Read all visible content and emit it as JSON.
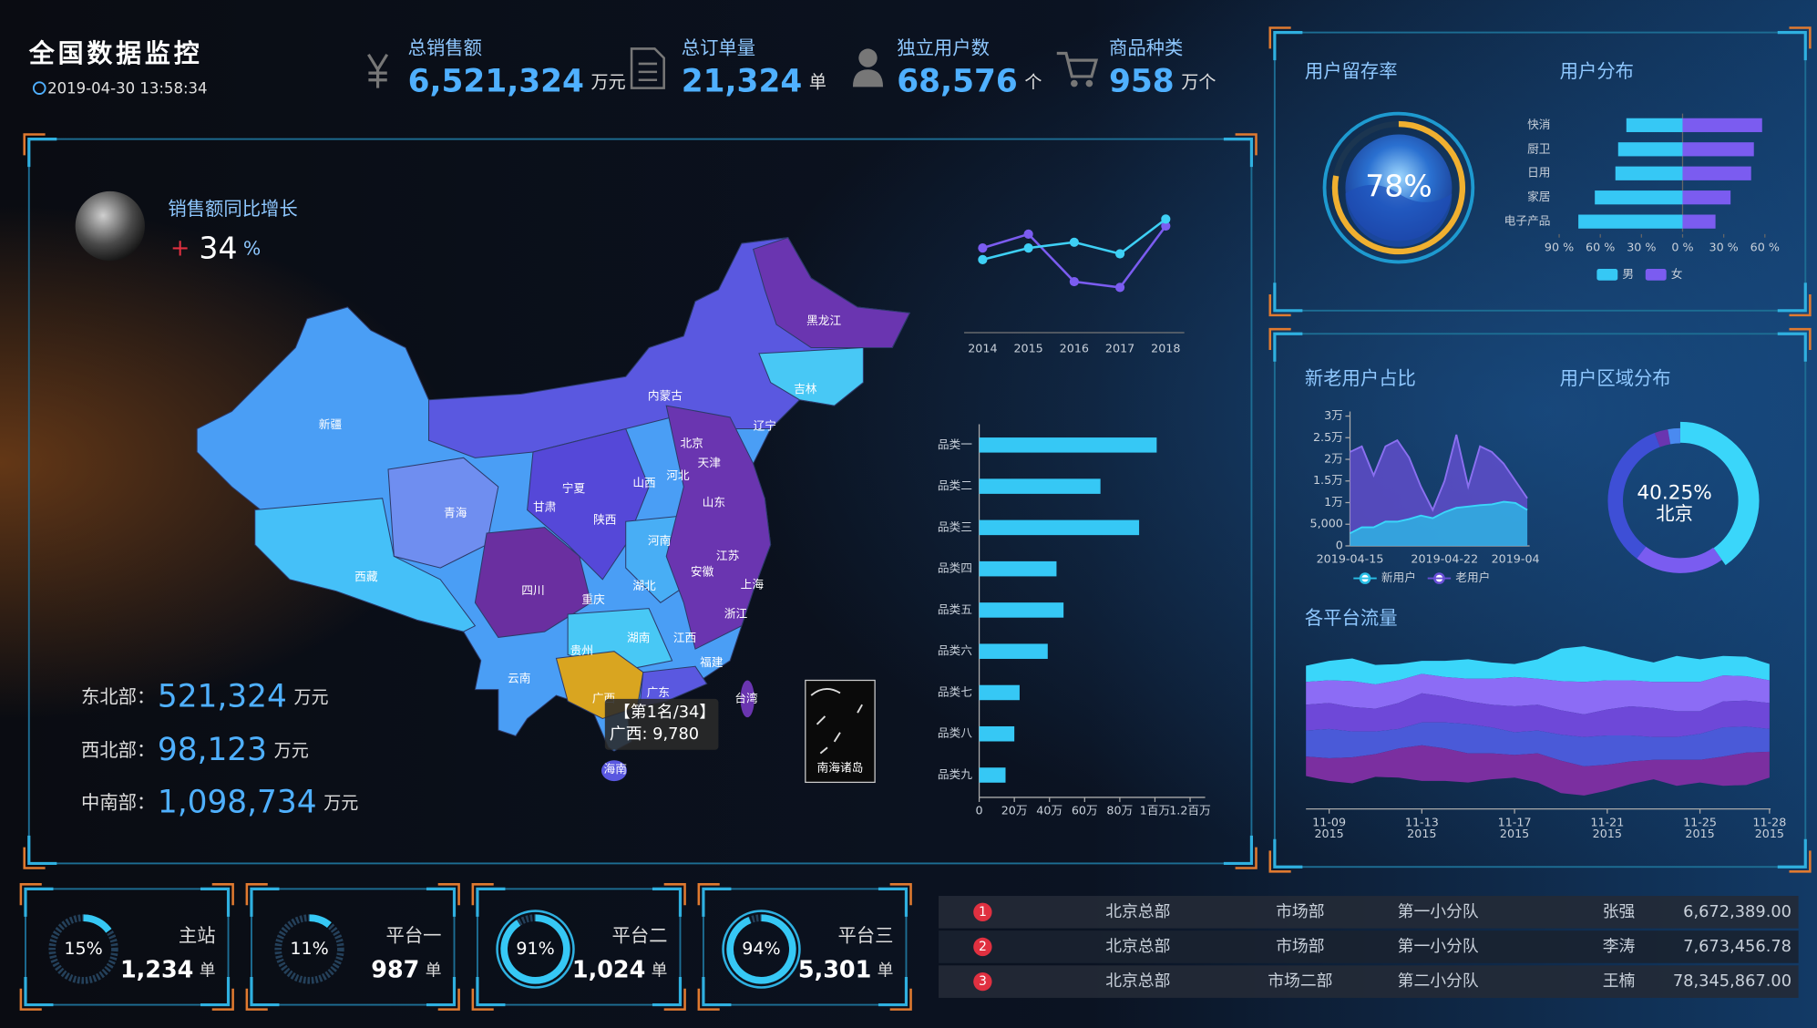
{
  "header": {
    "title": "全国数据监控",
    "time": "2019-04-30 13:58:34"
  },
  "kpis": [
    {
      "label": "总销售额",
      "value": "6,521,324",
      "unit": "万元"
    },
    {
      "label": "总订单量",
      "value": "21,324",
      "unit": "单"
    },
    {
      "label": "独立用户数",
      "value": "68,576",
      "unit": "个"
    },
    {
      "label": "商品种类",
      "value": "958",
      "unit": "万个"
    }
  ],
  "growth": {
    "label": "销售额同比增长",
    "sign": "+",
    "value": "34",
    "unit": "%"
  },
  "regions": [
    {
      "label": "东北部：",
      "value": "521,324",
      "unit": "万元"
    },
    {
      "label": "西北部：",
      "value": "98,123",
      "unit": "万元"
    },
    {
      "label": "中南部：",
      "value": "1,098,734",
      "unit": "万元"
    }
  ],
  "map": {
    "provinces": [
      "新疆",
      "西藏",
      "青海",
      "甘肃",
      "宁夏",
      "内蒙古",
      "黑龙江",
      "吉林",
      "辽宁",
      "北京",
      "天津",
      "河北",
      "山西",
      "陕西",
      "四川",
      "重庆",
      "云南",
      "贵州",
      "广西",
      "湖南",
      "湖北",
      "河南",
      "山东",
      "江苏",
      "安徽",
      "上海",
      "浙江",
      "江西",
      "福建",
      "广东",
      "台湾",
      "海南"
    ],
    "tooltip": {
      "rank": "【第1名/34】",
      "text": "广西: 9,780"
    },
    "inset": "南海诸岛"
  },
  "platforms": [
    {
      "name": "主站",
      "percent": 15,
      "percent_label": "15%",
      "count": "1,234",
      "unit": "单"
    },
    {
      "name": "平台一",
      "percent": 11,
      "percent_label": "11%",
      "count": "987",
      "unit": "单"
    },
    {
      "name": "平台二",
      "percent": 91,
      "percent_label": "91%",
      "count": "1,024",
      "unit": "单"
    },
    {
      "name": "平台三",
      "percent": 94,
      "percent_label": "94%",
      "count": "5,301",
      "unit": "单"
    }
  ],
  "table": {
    "rows": [
      [
        "1",
        "北京总部",
        "市场部",
        "第一小分队",
        "张强",
        "6,672,389.00"
      ],
      [
        "2",
        "北京总部",
        "市场部",
        "第一小分队",
        "李涛",
        "7,673,456.78"
      ],
      [
        "3",
        "北京总部",
        "市场二部",
        "第二小分队",
        "王楠",
        "78,345,867.00"
      ]
    ]
  },
  "chart_data": [
    {
      "type": "line",
      "categories": [
        "2014",
        "2015",
        "2016",
        "2017",
        "2018"
      ],
      "series": [
        {
          "color": "#7b5cf0",
          "values": [
            46,
            58,
            17,
            12,
            65
          ]
        },
        {
          "color": "#3ed0f5",
          "values": [
            36,
            46,
            51,
            41,
            71
          ]
        }
      ],
      "ylim": [
        0,
        80
      ]
    },
    {
      "type": "hbar",
      "categories": [
        "品类一",
        "品类二",
        "品类三",
        "品类四",
        "品类五",
        "品类六",
        "品类七",
        "品类八",
        "品类九"
      ],
      "values": [
        1010000,
        690000,
        910000,
        440000,
        480000,
        390000,
        230000,
        200000,
        150000
      ],
      "color": "#36c8f5",
      "xlim": [
        0,
        1200000
      ],
      "xticks": [
        0,
        {
          "value": 200000,
          "label": "20万"
        },
        {
          "value": 400000,
          "label": "40万"
        },
        {
          "value": 600000,
          "label": "60万"
        },
        {
          "value": 800000,
          "label": "80万"
        },
        {
          "value": 1000000,
          "label": "1百万"
        },
        {
          "value": 1200000,
          "label": "1.2百万"
        }
      ]
    },
    {
      "type": "gauge",
      "title": "用户留存率",
      "value": 78,
      "value_label": "78%",
      "color": "#f0b030"
    },
    {
      "type": "butterfly",
      "title": "用户分布",
      "categories": [
        "快消",
        "厨卫",
        "日用",
        "家居",
        "电子产品"
      ],
      "series": [
        {
          "name": "男",
          "color": "#36c8f5",
          "values": [
            -41,
            -47,
            -49,
            -64,
            -76
          ]
        },
        {
          "name": "女",
          "color": "#7b5cf0",
          "values": [
            58,
            52,
            50,
            35,
            24
          ]
        }
      ],
      "xlim": [
        -90,
        60
      ],
      "xticks": [
        {
          "value": -90,
          "label": "90 %"
        },
        {
          "value": -60,
          "label": "60 %"
        },
        {
          "value": -30,
          "label": "30 %"
        },
        {
          "value": 0,
          "label": "0 %"
        },
        {
          "value": 30,
          "label": "30 %"
        },
        {
          "value": 60,
          "label": "60 %"
        }
      ]
    },
    {
      "type": "area",
      "title": "新老用户占比",
      "categories": [
        "2019-04-15",
        null,
        null,
        null,
        null,
        null,
        null,
        null,
        "2019-04-22",
        null,
        null,
        null,
        null,
        null,
        "2019-04",
        null
      ],
      "series": [
        {
          "name": "新用户",
          "color": "#2ac0e8",
          "values": [
            2900,
            4300,
            4300,
            5600,
            5600,
            6200,
            7000,
            6400,
            7800,
            8800,
            9100,
            9400,
            9600,
            10200,
            9900,
            8300
          ]
        },
        {
          "name": "老用户",
          "color": "#6a50d8",
          "values": [
            21700,
            23000,
            16300,
            23000,
            24400,
            20400,
            13700,
            8300,
            15000,
            25700,
            13700,
            23000,
            21700,
            19000,
            15000,
            11000
          ]
        }
      ],
      "ylim": [
        0,
        30000
      ],
      "yticks": [
        0,
        {
          "value": 5000,
          "label": "5,000"
        },
        {
          "value": 10000,
          "label": "1万"
        },
        {
          "value": 15000,
          "label": "1.5万"
        },
        {
          "value": 20000,
          "label": "2万"
        },
        {
          "value": 25000,
          "label": "2.5万"
        },
        {
          "value": 30000,
          "label": "3万"
        }
      ]
    },
    {
      "type": "donut",
      "title": "用户区域分布",
      "categories": [
        "北京",
        null,
        null,
        null,
        null
      ],
      "values": [
        40.25,
        20,
        34,
        3,
        2.75
      ],
      "value_labels": [
        "40.25%",
        null,
        null,
        null,
        null
      ],
      "colors": [
        "#3ad6fa",
        "#7a5cf0",
        "#3e4fd6",
        "#6a35b0",
        "#4a8af0"
      ]
    },
    {
      "type": "stream",
      "title": "各平台流量",
      "categories": [
        null,
        {
          "date": "11-09",
          "year": "2015"
        },
        null,
        null,
        null,
        {
          "date": "11-13",
          "year": "2015"
        },
        null,
        null,
        null,
        {
          "date": "11-17",
          "year": "2015"
        },
        null,
        null,
        null,
        {
          "date": "11-21",
          "year": "2015"
        },
        null,
        null,
        null,
        {
          "date": "11-25",
          "year": "2015"
        },
        null,
        null,
        {
          "date": "11-28",
          "year": "2015"
        }
      ],
      "series": [
        {
          "color": "#3ad6fa",
          "values": [
            10,
            12,
            14,
            12,
            10,
            8,
            10,
            12,
            10,
            8,
            12,
            20,
            22,
            18,
            14,
            12,
            16,
            14,
            12,
            12,
            10
          ]
        },
        {
          "color": "#8c6cf5",
          "values": [
            14,
            14,
            16,
            15,
            14,
            12,
            12,
            14,
            16,
            18,
            16,
            18,
            20,
            18,
            16,
            16,
            18,
            18,
            16,
            15,
            14
          ]
        },
        {
          "color": "#6e48d8",
          "values": [
            16,
            16,
            15,
            14,
            16,
            18,
            16,
            14,
            14,
            16,
            16,
            15,
            14,
            16,
            18,
            18,
            16,
            14,
            16,
            16,
            16
          ]
        },
        {
          "color": "#4a5ad8",
          "values": [
            16,
            18,
            16,
            14,
            12,
            14,
            16,
            18,
            16,
            14,
            14,
            16,
            18,
            18,
            16,
            14,
            14,
            16,
            18,
            16,
            14
          ]
        },
        {
          "color": "#7b2fa0",
          "values": [
            12,
            14,
            16,
            14,
            18,
            22,
            20,
            18,
            16,
            14,
            18,
            20,
            18,
            16,
            14,
            12,
            16,
            14,
            18,
            20,
            16
          ]
        }
      ]
    }
  ]
}
